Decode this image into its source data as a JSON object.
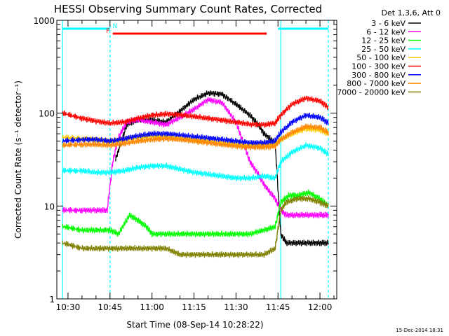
{
  "chart_data": {
    "type": "line",
    "title": "HESSI Observing Summary Count Rates, Corrected",
    "xlabel": "Start Time (08-Sep-14 10:28:22)",
    "ylabel": "Corrected Count Rate (s⁻¹ detector⁻¹)",
    "x_unit": "minutes since 10:28:22",
    "xlim": [
      "10:26",
      "12:06"
    ],
    "ylim": [
      1,
      1000
    ],
    "yscale": "log",
    "x_ticks": [
      {
        "label": "10:30",
        "t": 3.6
      },
      {
        "label": "10:45",
        "t": 18.6
      },
      {
        "label": "11:00",
        "t": 33.6
      },
      {
        "label": "11:15",
        "t": 48.6
      },
      {
        "label": "11:30",
        "t": 63.6
      },
      {
        "label": "11:45",
        "t": 78.6
      },
      {
        "label": "12:00",
        "t": 93.6
      }
    ],
    "y_ticks": [
      {
        "label": "1",
        "v": 1
      },
      {
        "label": "10",
        "v": 10
      },
      {
        "label": "100",
        "v": 100
      },
      {
        "label": "1000",
        "v": 1000
      }
    ],
    "legend_title": "Det 1,3,6, Att 0",
    "legend_placement": "right",
    "footer_timestamp": "15-Dec-2014 18:31",
    "flags": [
      {
        "label": "N",
        "color": "#00ffff",
        "segments": [
          [
            "10:28",
            "10:45"
          ],
          [
            "11:45",
            "12:03"
          ]
        ]
      },
      {
        "label": "F",
        "color": "#ff0000",
        "segments": [
          [
            "10:46",
            "11:41"
          ]
        ]
      }
    ],
    "vertical_markers": [
      {
        "x": "10:28",
        "color": "#00ffff",
        "style": "solid"
      },
      {
        "x": "10:45",
        "color": "#00ffff",
        "style": "dashed"
      },
      {
        "x": "11:46",
        "color": "#00ffff",
        "style": "solid"
      },
      {
        "x": "12:03",
        "color": "#00ffff",
        "style": "dashed"
      }
    ],
    "series": [
      {
        "name": "3 - 6 keV",
        "color": "#000000",
        "x": [
          "10:28",
          "10:45",
          "10:47",
          "10:51",
          "10:55",
          "11:00",
          "11:05",
          "11:10",
          "11:15",
          "11:20",
          "11:25",
          "11:30",
          "11:35",
          "11:38",
          "11:40",
          "11:44",
          "11:46",
          "11:48",
          "11:52",
          "11:56",
          "12:00",
          "12:03"
        ],
        "y": [
          null,
          null,
          32,
          75,
          85,
          85,
          80,
          105,
          140,
          165,
          160,
          125,
          95,
          75,
          60,
          48,
          5,
          4,
          4,
          4,
          4,
          4
        ]
      },
      {
        "name": "6 - 12 keV",
        "color": "#ff00ff",
        "x": [
          "10:28",
          "10:35",
          "10:40",
          "10:44",
          "10:46",
          "10:48",
          "10:51",
          "10:55",
          "11:00",
          "11:05",
          "11:10",
          "11:15",
          "11:20",
          "11:25",
          "11:30",
          "11:33",
          "11:35",
          "11:38",
          "11:40",
          "11:44",
          "11:46",
          "11:48",
          "11:52",
          "11:56",
          "12:00",
          "12:03"
        ],
        "y": [
          9,
          9,
          9,
          9,
          30,
          55,
          80,
          85,
          80,
          75,
          90,
          110,
          140,
          130,
          80,
          45,
          30,
          22,
          17,
          12,
          9,
          8,
          8,
          8,
          8,
          8
        ]
      },
      {
        "name": "12 - 25 keV",
        "color": "#00ff00",
        "x": [
          "10:28",
          "10:35",
          "10:40",
          "10:45",
          "10:48",
          "10:52",
          "10:55",
          "10:58",
          "11:00",
          "11:05",
          "11:10",
          "11:15",
          "11:20",
          "11:25",
          "11:30",
          "11:35",
          "11:40",
          "11:44",
          "11:46",
          "11:49",
          "11:52",
          "11:56",
          "12:00",
          "12:03"
        ],
        "y": [
          6,
          5.5,
          5.5,
          5.5,
          5,
          8,
          7,
          6,
          5,
          5,
          5,
          5,
          5,
          5,
          5,
          5,
          5.5,
          6,
          11,
          13,
          13,
          14,
          12,
          10
        ]
      },
      {
        "name": "25 - 50 keV",
        "color": "#00ffff",
        "x": [
          "10:28",
          "10:35",
          "10:40",
          "10:45",
          "10:50",
          "10:55",
          "11:00",
          "11:05",
          "11:10",
          "11:15",
          "11:20",
          "11:25",
          "11:30",
          "11:35",
          "11:40",
          "11:44",
          "11:46",
          "11:50",
          "11:55",
          "12:00",
          "12:03"
        ],
        "y": [
          24,
          24,
          23,
          23,
          24,
          26,
          27,
          27,
          25,
          23,
          22,
          21,
          20,
          20,
          21,
          20,
          30,
          38,
          45,
          42,
          36
        ]
      },
      {
        "name": "50 - 100 keV",
        "color": "#ffcc00",
        "x": [
          "10:28",
          "10:35",
          "10:40",
          "10:45",
          "10:50",
          "10:55",
          "11:00",
          "11:05",
          "11:10",
          "11:15",
          "11:20",
          "11:25",
          "11:30",
          "11:35",
          "11:40",
          "11:44",
          "11:46",
          "11:50",
          "11:55",
          "12:00",
          "12:03"
        ],
        "y": [
          55,
          53,
          52,
          50,
          52,
          55,
          57,
          56,
          54,
          52,
          50,
          48,
          46,
          45,
          46,
          47,
          52,
          60,
          68,
          66,
          60
        ]
      },
      {
        "name": "100 - 300 keV",
        "color": "#ff0000",
        "x": [
          "10:28",
          "10:35",
          "10:40",
          "10:45",
          "10:50",
          "10:55",
          "11:00",
          "11:05",
          "11:10",
          "11:15",
          "11:20",
          "11:25",
          "11:30",
          "11:35",
          "11:40",
          "11:44",
          "11:46",
          "11:50",
          "11:55",
          "12:00",
          "12:03"
        ],
        "y": [
          100,
          88,
          82,
          78,
          80,
          88,
          95,
          98,
          96,
          92,
          88,
          84,
          80,
          76,
          75,
          78,
          95,
          125,
          145,
          135,
          115
        ]
      },
      {
        "name": "300 - 800 keV",
        "color": "#0000ff",
        "x": [
          "10:28",
          "10:35",
          "10:40",
          "10:45",
          "10:50",
          "10:55",
          "11:00",
          "11:05",
          "11:10",
          "11:15",
          "11:20",
          "11:25",
          "11:30",
          "11:35",
          "11:40",
          "11:44",
          "11:46",
          "11:50",
          "11:55",
          "12:00",
          "12:03"
        ],
        "y": [
          50,
          52,
          52,
          50,
          53,
          57,
          60,
          60,
          58,
          56,
          54,
          52,
          50,
          48,
          48,
          50,
          62,
          80,
          95,
          90,
          78
        ]
      },
      {
        "name": "800 - 7000 keV",
        "color": "#ff8800",
        "x": [
          "10:28",
          "10:35",
          "10:40",
          "10:45",
          "10:50",
          "10:55",
          "11:00",
          "11:05",
          "11:10",
          "11:15",
          "11:20",
          "11:25",
          "11:30",
          "11:35",
          "11:40",
          "11:44",
          "11:46",
          "11:50",
          "11:55",
          "12:00",
          "12:03"
        ],
        "y": [
          45,
          46,
          46,
          45,
          47,
          50,
          52,
          53,
          52,
          50,
          48,
          46,
          44,
          43,
          43,
          44,
          52,
          62,
          72,
          70,
          62
        ]
      },
      {
        "name": "7000 - 20000 keV",
        "color": "#808000",
        "x": [
          "10:28",
          "10:35",
          "10:40",
          "10:45",
          "10:50",
          "10:55",
          "11:00",
          "11:05",
          "11:10",
          "11:15",
          "11:20",
          "11:25",
          "11:30",
          "11:35",
          "11:40",
          "11:44",
          "11:46",
          "11:48",
          "11:52",
          "11:56",
          "12:00",
          "12:03"
        ],
        "y": [
          4,
          3.5,
          3.5,
          3.5,
          3.5,
          3.5,
          3.5,
          3.5,
          3,
          3,
          3,
          3,
          3,
          3,
          3,
          3.5,
          9,
          11,
          12,
          12,
          11,
          10
        ]
      }
    ]
  }
}
